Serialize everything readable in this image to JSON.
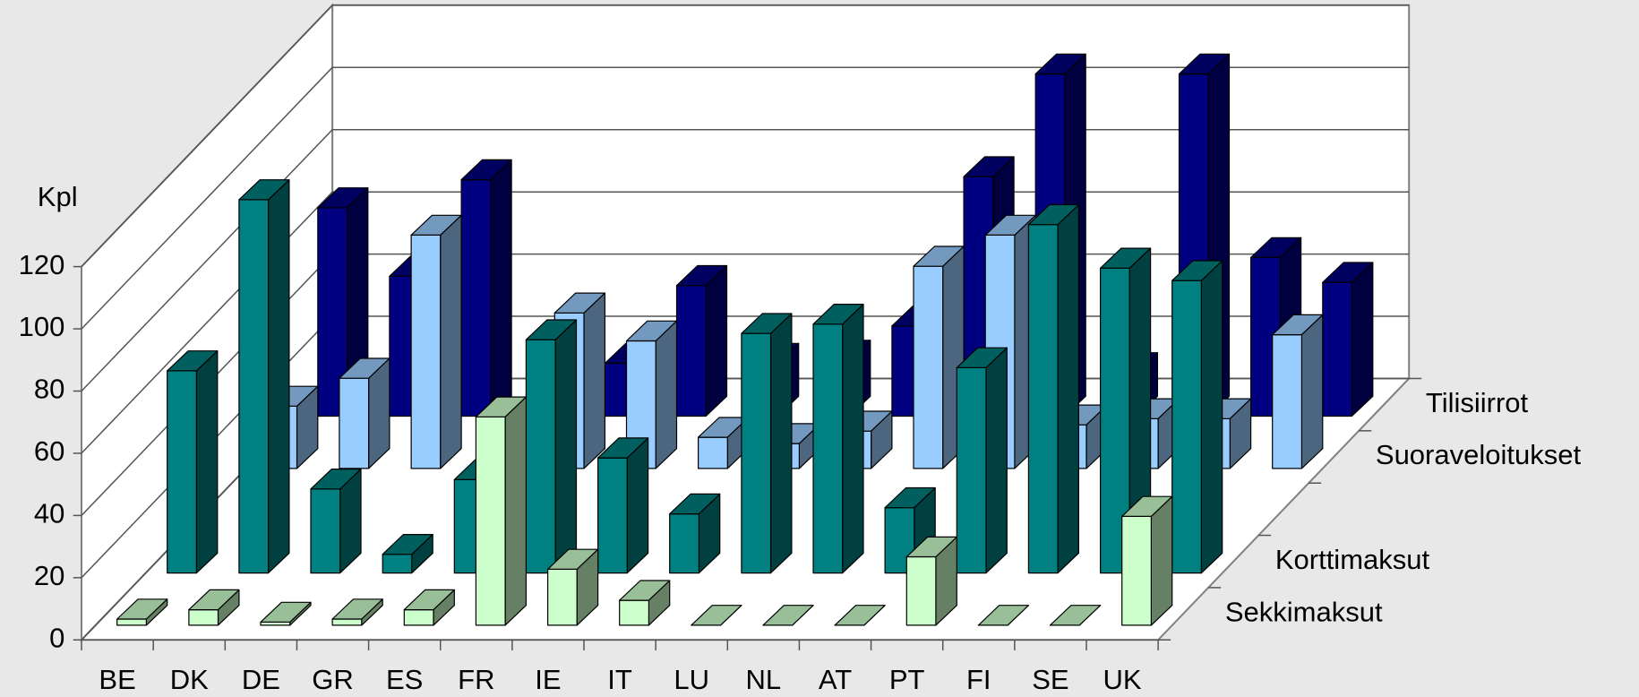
{
  "chart_data": {
    "type": "bar3d",
    "y_label": "Kpl",
    "categories": [
      "BE",
      "DK",
      "DE",
      "GR",
      "ES",
      "FR",
      "IE",
      "IT",
      "LU",
      "NL",
      "AT",
      "PT",
      "FI",
      "SE",
      "UK"
    ],
    "series": [
      {
        "name": "Sekkimaksut",
        "color": "#ccffcc",
        "values": [
          2,
          5,
          1,
          2,
          5,
          67,
          18,
          8,
          0,
          0,
          0,
          22,
          0,
          0,
          35
        ]
      },
      {
        "name": "Korttimaksut",
        "color": "#008080",
        "values": [
          65,
          120,
          27,
          6,
          30,
          75,
          37,
          19,
          77,
          80,
          21,
          66,
          112,
          98,
          94
        ]
      },
      {
        "name": "Suoraveloitukset",
        "color": "#99ccff",
        "values": [
          20,
          29,
          75,
          10,
          50,
          41,
          10,
          8,
          12,
          65,
          75,
          14,
          16,
          16,
          43
        ]
      },
      {
        "name": "Tilisiirrot",
        "color": "#000080",
        "values": [
          67,
          45,
          76,
          10,
          17,
          42,
          17,
          18,
          29,
          77,
          110,
          14,
          110,
          51,
          43
        ]
      }
    ],
    "ylim": [
      0,
      120
    ],
    "yticks": [
      0,
      20,
      40,
      60,
      80,
      100,
      120
    ],
    "grid": true
  }
}
